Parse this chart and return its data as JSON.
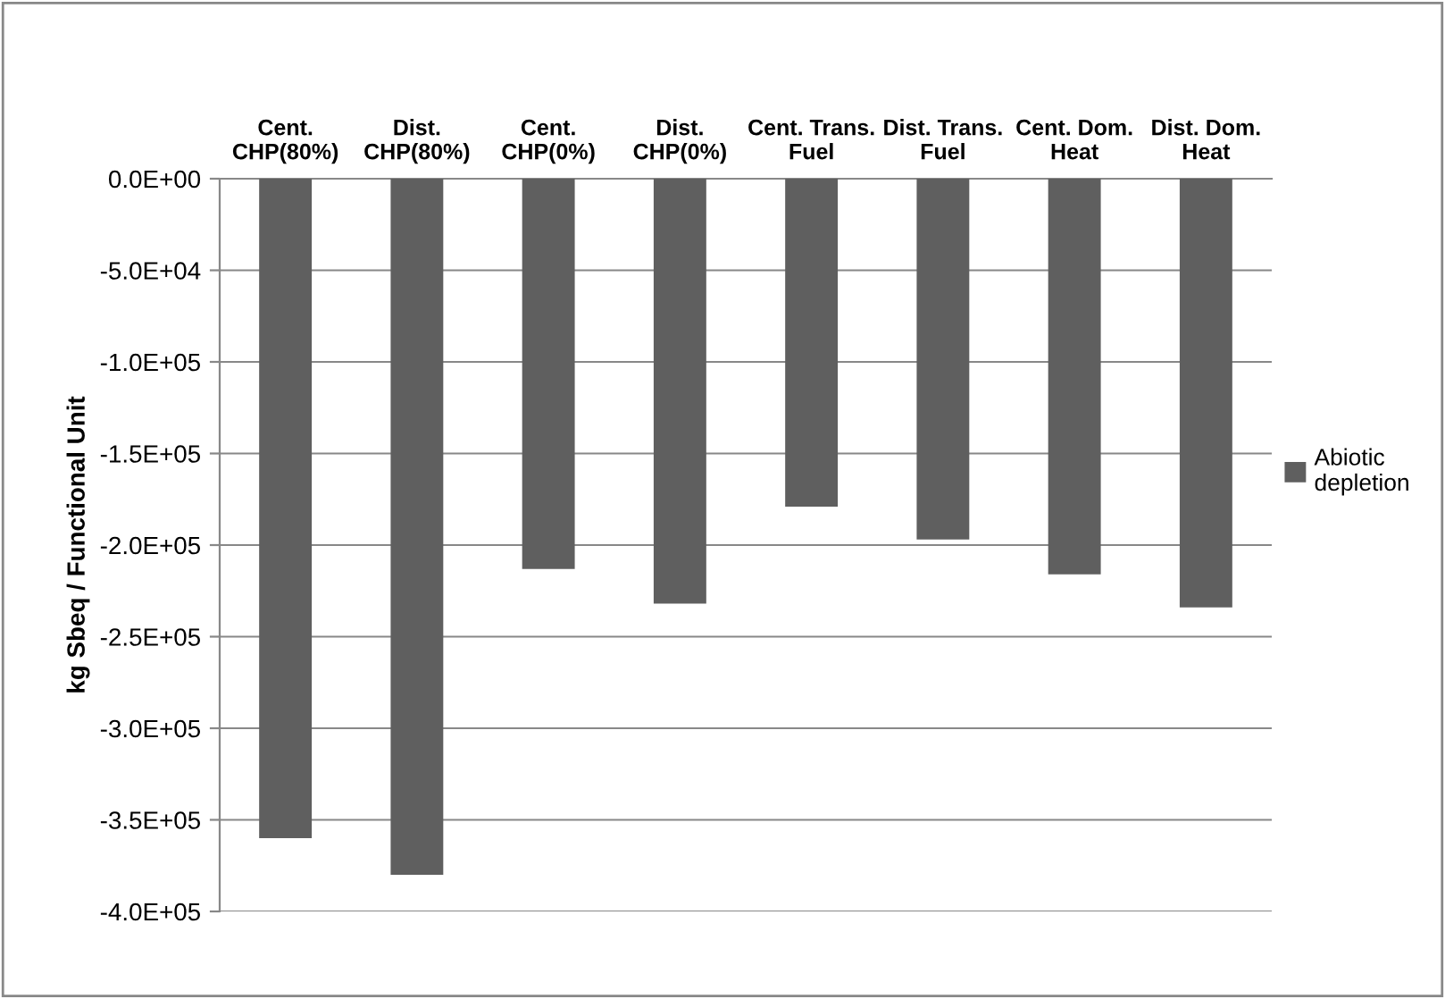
{
  "chart_data": {
    "type": "bar",
    "ylabel": "kg Sbeq / Functional Unit",
    "categories": [
      "Cent.\nCHP(80%)",
      "Dist.\nCHP(80%)",
      "Cent.\nCHP(0%)",
      "Dist.\nCHP(0%)",
      "Cent. Trans.\nFuel",
      "Dist. Trans.\nFuel",
      "Cent. Dom.\nHeat",
      "Dist. Dom.\nHeat"
    ],
    "series": [
      {
        "name": "Abiotic\ndepletion",
        "color": "#5f5f5f",
        "values": [
          -360000,
          -380000,
          -213000,
          -232000,
          -179000,
          -197000,
          -216000,
          -234000
        ]
      }
    ],
    "ylim": [
      -400000,
      0
    ],
    "yticks": [
      {
        "value": 0,
        "label": "0.0E+00"
      },
      {
        "value": -50000,
        "label": "-5.0E+04"
      },
      {
        "value": -100000,
        "label": "-1.0E+05"
      },
      {
        "value": -150000,
        "label": "-1.5E+05"
      },
      {
        "value": -200000,
        "label": "-2.0E+05"
      },
      {
        "value": -250000,
        "label": "-2.5E+05"
      },
      {
        "value": -300000,
        "label": "-3.0E+05"
      },
      {
        "value": -350000,
        "label": "-3.5E+05"
      },
      {
        "value": -400000,
        "label": "-4.0E+05"
      }
    ],
    "grid": "y",
    "legend": "right"
  }
}
